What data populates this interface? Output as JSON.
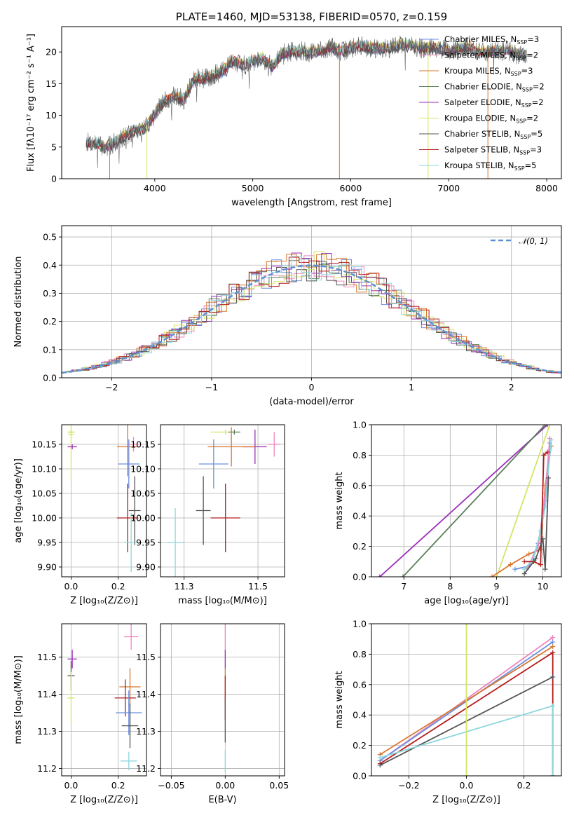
{
  "chart_data": [
    {
      "id": "spectrum",
      "type": "line",
      "title": "PLATE=1460, MJD=53138, FIBERID=0570, z=0.159",
      "xlabel": "wavelength [Angstrom, rest frame]",
      "ylabel": "Flux [fλ10⁻¹⁷ erg cm⁻² s⁻¹ A⁻¹]",
      "xlim": [
        3050,
        8150
      ],
      "ylim": [
        0,
        24
      ],
      "xticks": [
        4000,
        5000,
        6000,
        7000,
        8000
      ],
      "yticks": [
        0,
        5,
        10,
        15,
        20
      ],
      "legend_position": "upper-right",
      "envelope": {
        "x": [
          3300,
          3400,
          3500,
          3600,
          3700,
          3800,
          3900,
          4000,
          4100,
          4200,
          4300,
          4400,
          4500,
          4600,
          4700,
          4800,
          4900,
          5000,
          5100,
          5200,
          5300,
          5400,
          5500,
          5600,
          5700,
          5800,
          5900,
          6000,
          6100,
          6200,
          6300,
          6400,
          6500,
          6600,
          6700,
          6800,
          6900,
          7000,
          7100,
          7200,
          7300,
          7400,
          7500,
          7600,
          7700,
          7800
        ],
        "y": [
          5.8,
          5.6,
          4.8,
          5.8,
          6.8,
          7.5,
          8.0,
          10.2,
          12.3,
          13.0,
          12.5,
          15.8,
          15.8,
          16.3,
          17.0,
          18.7,
          17.8,
          18.6,
          19.0,
          17.6,
          19.7,
          20.1,
          20.1,
          19.9,
          20.2,
          20.8,
          20.0,
          20.6,
          21.0,
          20.6,
          20.6,
          20.6,
          21.2,
          21.0,
          20.6,
          20.6,
          20.7,
          20.0,
          20.7,
          20.8,
          20.0,
          20.1,
          20.0,
          20.3,
          19.6,
          19.6
        ]
      }
    },
    {
      "id": "residuals",
      "type": "line",
      "xlabel": "(data-model)/error",
      "ylabel": "Normed distribution",
      "xlim": [
        -2.5,
        2.5
      ],
      "ylim": [
        0,
        0.54
      ],
      "xticks": [
        -2,
        -1,
        0,
        1,
        2
      ],
      "yticks": [
        0.0,
        0.1,
        0.2,
        0.3,
        0.4,
        0.5
      ],
      "reference_curve": "𝒩(0, 1)",
      "reference_color": "#5b8fd4",
      "legend_position": "upper-right"
    },
    {
      "id": "age-vs-Z",
      "type": "scatter",
      "xlabel": "Z [log₁₀(Z/Z⊙)]",
      "ylabel": "age  [log₁₀(age/yr)]",
      "xlim": [
        -0.04,
        0.32
      ],
      "ylim": [
        9.88,
        10.19
      ],
      "xticks": [
        0.0,
        0.2
      ],
      "yticks": [
        9.9,
        9.95,
        10.0,
        10.05,
        10.1,
        10.15
      ],
      "points": [
        {
          "x": 0.0,
          "y": 10.175,
          "ex": 0.015,
          "ey": 0.005,
          "color": "#c7d650"
        },
        {
          "x": 0.0,
          "y": 10.17,
          "ex": 0.012,
          "ey": 0.09,
          "color": "#d5e566"
        },
        {
          "x": 0.005,
          "y": 10.145,
          "ex": 0.02,
          "ey": 0.005,
          "color": "#9a2eb8"
        },
        {
          "x": 0.265,
          "y": 10.15,
          "ex": 0.025,
          "ey": 0.015,
          "color": "#ee85bd"
        },
        {
          "x": 0.24,
          "y": 10.145,
          "ex": 0.045,
          "ey": 0.06,
          "color": "#d7762f"
        },
        {
          "x": 0.245,
          "y": 10.11,
          "ex": 0.045,
          "ey": 0.05,
          "color": "#6a8fe0"
        },
        {
          "x": 0.27,
          "y": 10.015,
          "ex": 0.025,
          "ey": 0.07,
          "color": "#555555"
        },
        {
          "x": 0.24,
          "y": 10.0,
          "ex": 0.045,
          "ey": 0.07,
          "color": "#b51c1c"
        },
        {
          "x": 0.255,
          "y": 9.95,
          "ex": 0.03,
          "ey": 0.06,
          "color": "#8cd7dc"
        }
      ]
    },
    {
      "id": "age-vs-mass",
      "type": "scatter",
      "xlabel": "mass [log₁₀(M/M⊙)]",
      "ylabel": "",
      "xlim": [
        11.17,
        11.59
      ],
      "ylim": [
        9.88,
        10.19
      ],
      "xticks": [
        11.25,
        11.5
      ],
      "yticks": [
        9.9,
        9.95,
        10.0,
        10.05,
        10.1,
        10.15
      ],
      "points": [
        {
          "x": 11.39,
          "y": 10.175,
          "ex": 0.05,
          "ey": 0.005,
          "color": "#d5e566"
        },
        {
          "x": 11.42,
          "y": 10.175,
          "ex": 0.02,
          "ey": 0.005,
          "color": "#5a7f5a"
        },
        {
          "x": 11.49,
          "y": 10.145,
          "ex": 0.04,
          "ey": 0.035,
          "color": "#9a2eb8"
        },
        {
          "x": 11.555,
          "y": 10.15,
          "ex": 0.02,
          "ey": 0.025,
          "color": "#ee85bd"
        },
        {
          "x": 11.41,
          "y": 10.145,
          "ex": 0.08,
          "ey": 0.04,
          "color": "#d7762f"
        },
        {
          "x": 11.35,
          "y": 10.11,
          "ex": 0.05,
          "ey": 0.05,
          "color": "#6a8fe0"
        },
        {
          "x": 11.315,
          "y": 10.015,
          "ex": 0.025,
          "ey": 0.07,
          "color": "#555555"
        },
        {
          "x": 11.39,
          "y": 10.0,
          "ex": 0.05,
          "ey": 0.07,
          "color": "#b51c1c"
        },
        {
          "x": 11.22,
          "y": 9.95,
          "ex": 0.03,
          "ey": 0.07,
          "color": "#8cd7dc"
        }
      ]
    },
    {
      "id": "mass-weight-vs-age",
      "type": "line",
      "xlabel": "age  [log₁₀(age/yr)]",
      "ylabel": "mass weight",
      "xlim": [
        6.3,
        10.4
      ],
      "ylim": [
        0,
        1.0
      ],
      "xticks": [
        7,
        8,
        9,
        10
      ],
      "yticks": [
        0.0,
        0.2,
        0.4,
        0.6,
        0.8,
        1.0
      ],
      "series": [
        {
          "color": "#9a2eb8",
          "x": [
            6.48,
            10.1
          ],
          "y": [
            0.0,
            1.0
          ]
        },
        {
          "color": "#5a7f5a",
          "x": [
            6.98,
            10.05
          ],
          "y": [
            0.0,
            1.0
          ]
        },
        {
          "color": "#d5e566",
          "x": [
            9.0,
            10.15
          ],
          "y": [
            0.0,
            1.0
          ]
        },
        {
          "color": "#d7762f",
          "x": [
            8.9,
            9.3,
            9.7,
            9.95,
            10.05,
            10.18
          ],
          "y": [
            0.0,
            0.08,
            0.15,
            0.18,
            0.6,
            0.86
          ]
        },
        {
          "color": "#6a8fe0",
          "x": [
            9.4,
            9.7,
            9.9,
            10.05,
            10.15
          ],
          "y": [
            0.05,
            0.07,
            0.22,
            0.5,
            0.88
          ]
        },
        {
          "color": "#ee85bd",
          "x": [
            9.65,
            9.9,
            10.05,
            10.15
          ],
          "y": [
            0.05,
            0.2,
            0.55,
            0.91
          ]
        },
        {
          "color": "#8cd7dc",
          "x": [
            9.6,
            9.8,
            9.95,
            10.05,
            10.18
          ],
          "y": [
            0.05,
            0.12,
            0.3,
            0.46,
            0.9
          ]
        },
        {
          "color": "#b51c1c",
          "x": [
            9.6,
            9.8,
            9.95,
            10.02,
            10.1
          ],
          "y": [
            0.1,
            0.1,
            0.08,
            0.8,
            0.82
          ]
        },
        {
          "color": "#555555",
          "x": [
            9.6,
            9.85,
            10.0,
            10.05,
            10.12
          ],
          "y": [
            0.02,
            0.12,
            0.25,
            0.05,
            0.65
          ]
        }
      ]
    },
    {
      "id": "mass-vs-Z",
      "type": "scatter",
      "xlabel": "Z [log₁₀(Z/Z⊙)]",
      "ylabel": "mass [log₁₀(M/M⊙)]",
      "xlim": [
        -0.04,
        0.32
      ],
      "ylim": [
        11.18,
        11.59
      ],
      "xticks": [
        0.0,
        0.2
      ],
      "yticks": [
        11.2,
        11.3,
        11.4,
        11.5
      ],
      "points": [
        {
          "x": 0.005,
          "y": 11.495,
          "ex": 0.02,
          "ey": 0.025,
          "color": "#9a2eb8"
        },
        {
          "x": 0.0,
          "y": 11.45,
          "ex": 0.015,
          "ey": 0.04,
          "color": "#555555"
        },
        {
          "x": 0.0,
          "y": 11.39,
          "ex": 0.015,
          "ey": 0.07,
          "color": "#d5e566"
        },
        {
          "x": 0.255,
          "y": 11.555,
          "ex": 0.03,
          "ey": 0.035,
          "color": "#ee85bd"
        },
        {
          "x": 0.25,
          "y": 11.42,
          "ex": 0.045,
          "ey": 0.05,
          "color": "#d7762f"
        },
        {
          "x": 0.23,
          "y": 11.39,
          "ex": 0.045,
          "ey": 0.05,
          "color": "#b51c1c"
        },
        {
          "x": 0.245,
          "y": 11.35,
          "ex": 0.055,
          "ey": 0.06,
          "color": "#6a8fe0"
        },
        {
          "x": 0.25,
          "y": 11.315,
          "ex": 0.035,
          "ey": 0.06,
          "color": "#555555"
        },
        {
          "x": 0.245,
          "y": 11.22,
          "ex": 0.035,
          "ey": 0.025,
          "color": "#8cd7dc"
        }
      ]
    },
    {
      "id": "mass-vs-EBV",
      "type": "scatter",
      "xlabel": "E(B-V)",
      "ylabel": "",
      "xlim": [
        -0.06,
        0.055
      ],
      "ylim": [
        11.18,
        11.59
      ],
      "xticks": [
        -0.05,
        0.0,
        0.05
      ],
      "yticks": [
        11.2,
        11.3,
        11.4,
        11.5
      ],
      "points": [
        {
          "x": 0.0,
          "y": 11.555,
          "ex": 0.0,
          "ey": 0.035,
          "color": "#ee85bd"
        },
        {
          "x": 0.0,
          "y": 11.495,
          "ex": 0.0,
          "ey": 0.025,
          "color": "#9a2eb8"
        },
        {
          "x": 0.0,
          "y": 11.42,
          "ex": 0.0,
          "ey": 0.05,
          "color": "#d7762f"
        },
        {
          "x": 0.0,
          "y": 11.39,
          "ex": 0.0,
          "ey": 0.06,
          "color": "#b51c1c"
        },
        {
          "x": 0.0,
          "y": 11.33,
          "ex": 0.0,
          "ey": 0.06,
          "color": "#555555"
        },
        {
          "x": 0.0,
          "y": 11.22,
          "ex": 0.0,
          "ey": 0.03,
          "color": "#8cd7dc"
        }
      ]
    },
    {
      "id": "mass-weight-vs-Z",
      "type": "line",
      "xlabel": "Z [log₁₀(Z/Z⊙)]",
      "ylabel": "mass weight",
      "xlim": [
        -0.33,
        0.33
      ],
      "ylim": [
        0,
        1.0
      ],
      "xticks": [
        -0.2,
        0.0,
        0.2
      ],
      "yticks": [
        0.0,
        0.2,
        0.4,
        0.6,
        0.8,
        1.0
      ],
      "series": [
        {
          "color": "#ee85bd",
          "x": [
            -0.3,
            0.3
          ],
          "y": [
            0.1,
            0.91
          ]
        },
        {
          "color": "#6a8fe0",
          "x": [
            -0.3,
            0.3
          ],
          "y": [
            0.1,
            0.88
          ]
        },
        {
          "color": "#d7762f",
          "x": [
            -0.3,
            0.3
          ],
          "y": [
            0.14,
            0.85
          ]
        },
        {
          "color": "#b51c1c",
          "x": [
            -0.3,
            0.3,
            0.3
          ],
          "y": [
            0.08,
            0.81,
            0.0
          ]
        },
        {
          "color": "#555555",
          "x": [
            -0.3,
            0.3
          ],
          "y": [
            0.07,
            0.65
          ]
        },
        {
          "color": "#8cd7dc",
          "x": [
            -0.3,
            0.3,
            0.3
          ],
          "y": [
            0.12,
            0.46,
            0.0
          ]
        },
        {
          "color": "#d5e566",
          "x": [
            0.0,
            0.0
          ],
          "y": [
            0.0,
            1.0
          ]
        }
      ]
    }
  ],
  "legend": [
    {
      "label": "Chabrier MILES, N",
      "sub": "SSP",
      "tail": "=3",
      "color": "#6a8fe0"
    },
    {
      "label": "Salpeter MILES, N",
      "sub": "SSP",
      "tail": "=2",
      "color": "#ee85bd"
    },
    {
      "label": "Kroupa MILES, N",
      "sub": "SSP",
      "tail": "=3",
      "color": "#d7762f"
    },
    {
      "label": "Chabrier ELODIE, N",
      "sub": "SSP",
      "tail": "=2",
      "color": "#5a7f5a"
    },
    {
      "label": "Salpeter ELODIE, N",
      "sub": "SSP",
      "tail": "=2",
      "color": "#9a2eb8"
    },
    {
      "label": "Kroupa ELODIE, N",
      "sub": "SSP",
      "tail": "=2",
      "color": "#d5e566"
    },
    {
      "label": "Chabrier STELIB, N",
      "sub": "SSP",
      "tail": "=5",
      "color": "#555555"
    },
    {
      "label": "Salpeter STELIB, N",
      "sub": "SSP",
      "tail": "=3",
      "color": "#b51c1c"
    },
    {
      "label": "Kroupa STELIB, N",
      "sub": "SSP",
      "tail": "=5",
      "color": "#8cd7dc"
    }
  ]
}
